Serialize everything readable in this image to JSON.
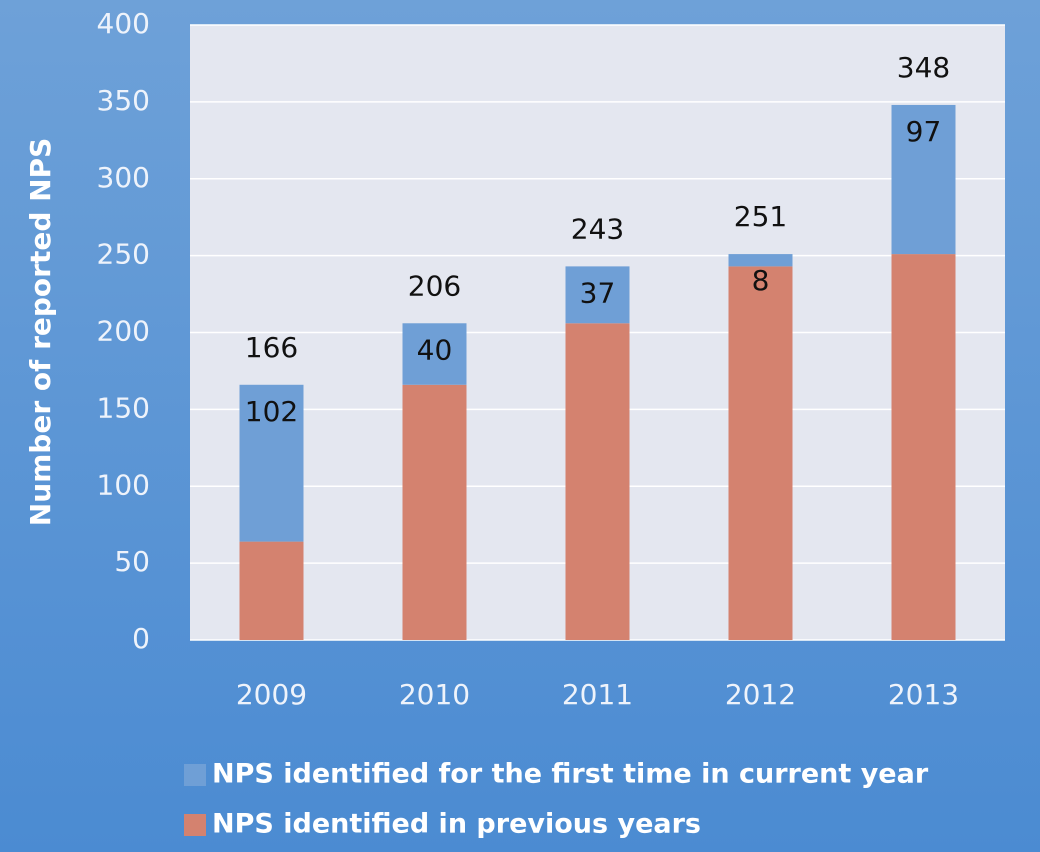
{
  "chart_data": {
    "type": "stacked_bar",
    "ylabel": "Number of reported NPS",
    "categories": [
      "2009",
      "2010",
      "2011",
      "2012",
      "2013"
    ],
    "series": [
      {
        "name": "NPS identified in previous years",
        "color": "#d4826f",
        "values": [
          64,
          166,
          206,
          243,
          251
        ]
      },
      {
        "name": "NPS identified for the first time in current year",
        "color": "#6f9fd6",
        "values": [
          102,
          40,
          37,
          8,
          97
        ]
      }
    ],
    "totals": [
      166,
      206,
      243,
      251,
      348
    ],
    "ylim": [
      0,
      400
    ],
    "yticks": [
      0,
      50,
      100,
      150,
      200,
      250,
      300,
      350,
      400
    ],
    "grid": true
  }
}
